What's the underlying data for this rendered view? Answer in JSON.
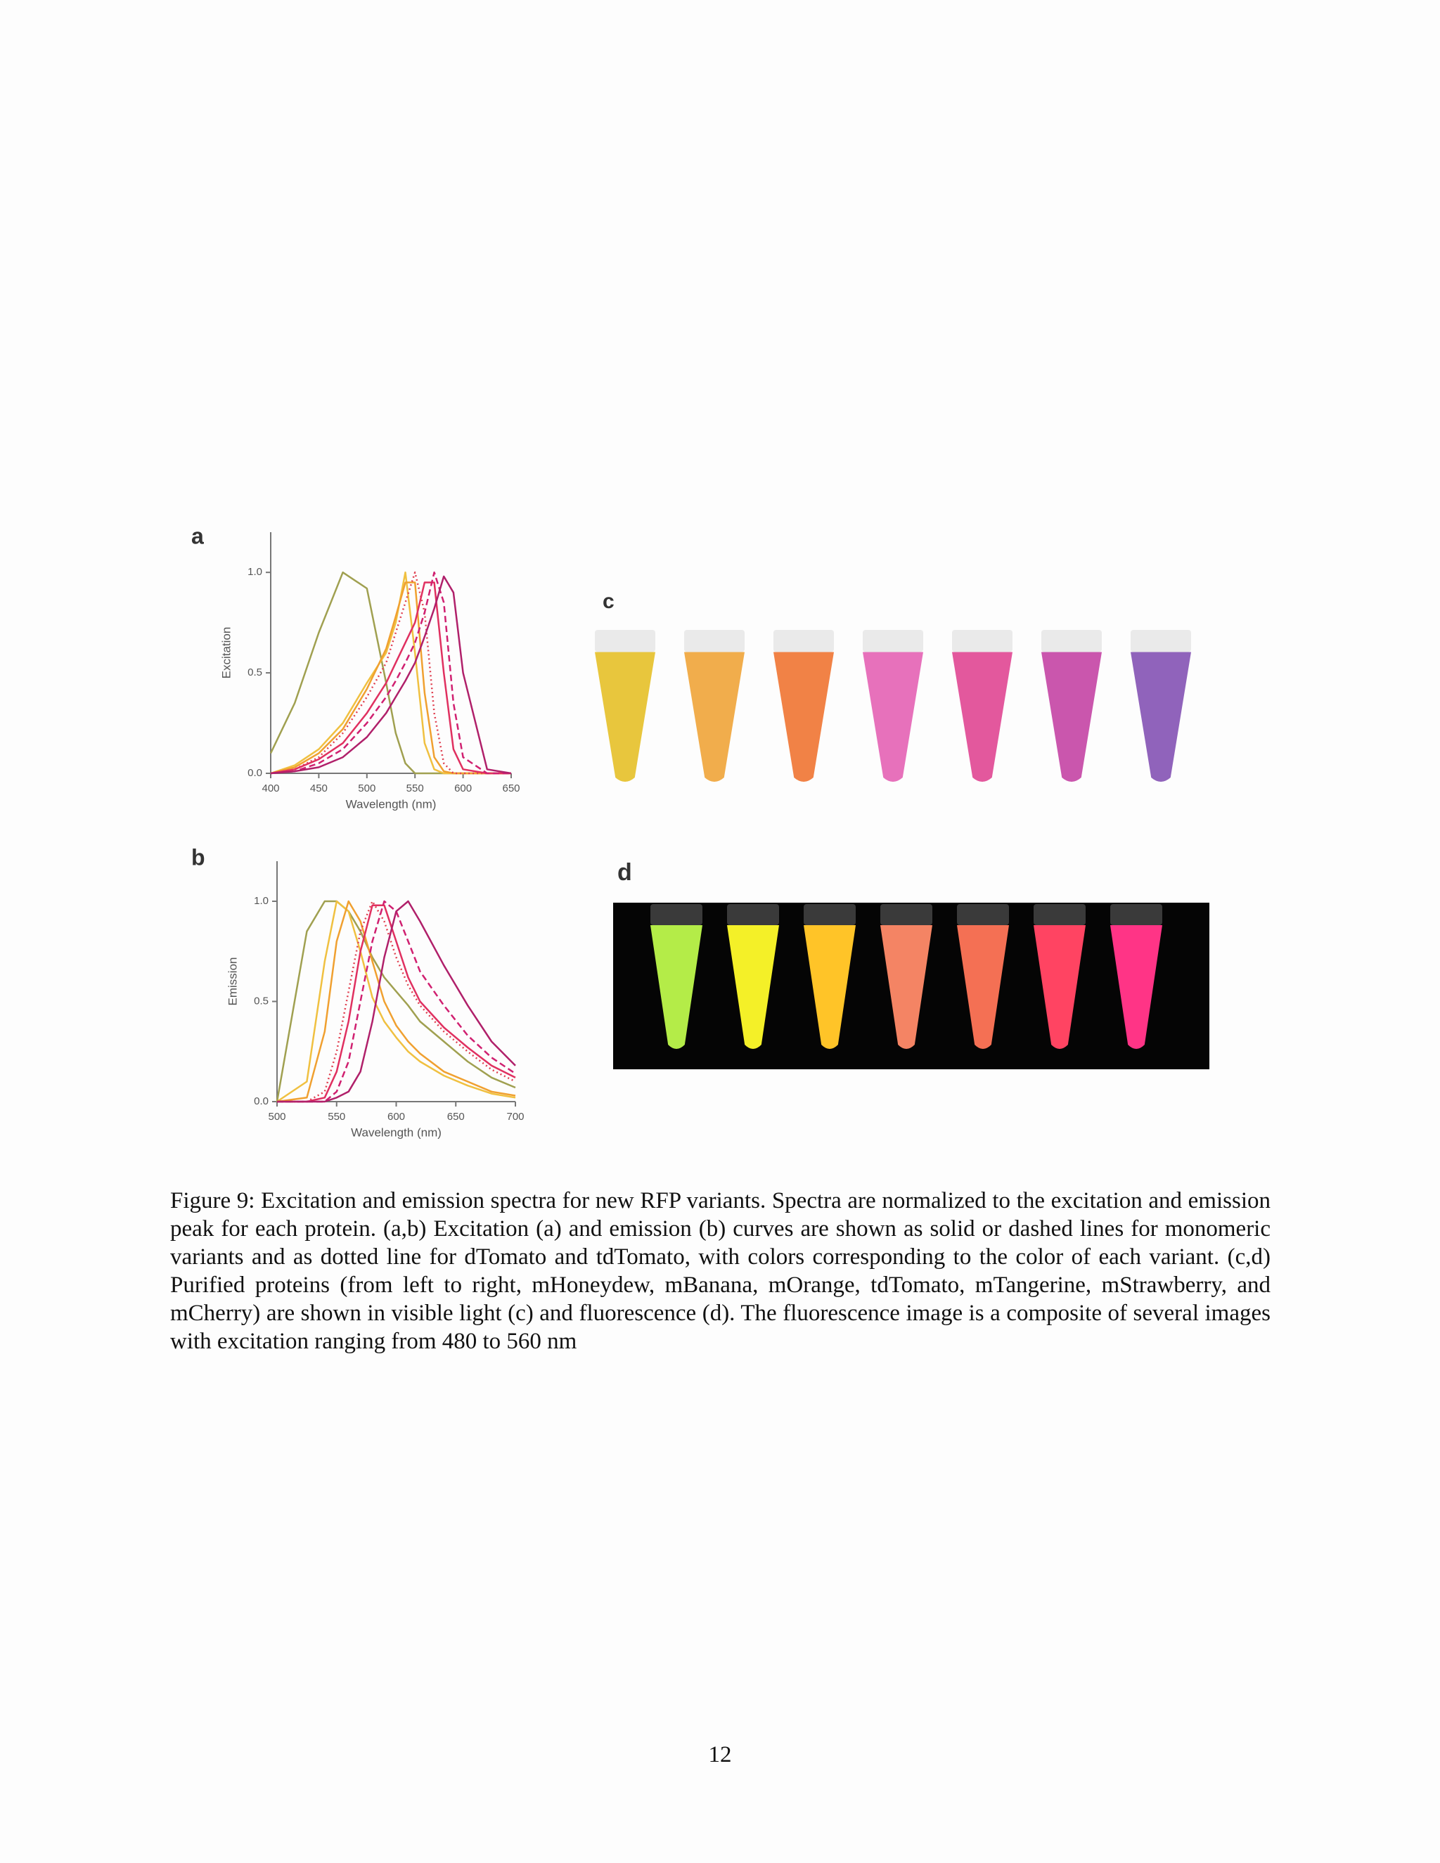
{
  "chart_data": [
    {
      "type": "line",
      "label": "a",
      "ylabel": "Excitation",
      "xlabel": "Wavelength (nm)",
      "x": [
        400,
        425,
        450,
        475,
        500,
        520,
        530,
        540,
        550,
        560,
        570,
        580,
        590,
        600,
        625,
        650
      ],
      "xlim": [
        400,
        650
      ],
      "xticks": [
        400,
        450,
        500,
        550,
        600,
        650
      ],
      "ylim": [
        0,
        1.2
      ],
      "yticks": [
        {
          "value": 0,
          "label": "0.0"
        },
        {
          "value": 0.5,
          "label": "0.5"
        },
        {
          "value": 1,
          "label": "1.0"
        }
      ],
      "series": [
        {
          "color": "#a0a050",
          "values": [
            0.1,
            0.35,
            0.7,
            1.0,
            0.92,
            0.45,
            0.2,
            0.05,
            0,
            0,
            0,
            0,
            0,
            0,
            0,
            0
          ]
        },
        {
          "color": "#f0c040",
          "values": [
            0,
            0.04,
            0.12,
            0.25,
            0.45,
            0.6,
            0.75,
            1.0,
            0.6,
            0.15,
            0.02,
            0,
            0,
            0,
            0,
            0
          ]
        },
        {
          "color": "#f0a030",
          "values": [
            0,
            0.03,
            0.1,
            0.22,
            0.42,
            0.62,
            0.78,
            0.95,
            0.95,
            0.4,
            0.08,
            0.01,
            0,
            0,
            0,
            0
          ]
        },
        {
          "color": "#e04050",
          "dash": "dotted",
          "values": [
            0,
            0.02,
            0.08,
            0.2,
            0.38,
            0.55,
            0.7,
            0.85,
            1.0,
            0.8,
            0.3,
            0.05,
            0,
            0,
            0,
            0
          ]
        },
        {
          "color": "#e03060",
          "values": [
            0,
            0.02,
            0.07,
            0.15,
            0.3,
            0.45,
            0.55,
            0.65,
            0.75,
            0.95,
            0.95,
            0.5,
            0.12,
            0.02,
            0,
            0
          ]
        },
        {
          "color": "#d02070",
          "dash": "dashed",
          "values": [
            0,
            0.01,
            0.05,
            0.12,
            0.25,
            0.38,
            0.46,
            0.55,
            0.65,
            0.8,
            1.0,
            0.85,
            0.35,
            0.08,
            0,
            0
          ]
        },
        {
          "color": "#b0206a",
          "values": [
            0,
            0.01,
            0.03,
            0.08,
            0.18,
            0.3,
            0.38,
            0.46,
            0.55,
            0.68,
            0.82,
            0.98,
            0.9,
            0.5,
            0.02,
            0
          ]
        }
      ]
    },
    {
      "type": "line",
      "label": "b",
      "ylabel": "Emission",
      "xlabel": "Wavelength (nm)",
      "x": [
        500,
        525,
        540,
        550,
        560,
        570,
        580,
        590,
        600,
        610,
        620,
        640,
        660,
        680,
        700
      ],
      "xlim": [
        500,
        700
      ],
      "xticks": [
        500,
        550,
        600,
        650,
        700
      ],
      "ylim": [
        0,
        1.2
      ],
      "yticks": [
        {
          "value": 0,
          "label": "0.0"
        },
        {
          "value": 0.5,
          "label": "0.5"
        },
        {
          "value": 1,
          "label": "1.0"
        }
      ],
      "series": [
        {
          "color": "#a0a050",
          "values": [
            0,
            0.85,
            1.0,
            1.0,
            0.95,
            0.85,
            0.72,
            0.62,
            0.55,
            0.48,
            0.4,
            0.3,
            0.2,
            0.12,
            0.07
          ]
        },
        {
          "color": "#f0c040",
          "values": [
            0,
            0.1,
            0.7,
            1.0,
            0.95,
            0.75,
            0.52,
            0.4,
            0.32,
            0.25,
            0.2,
            0.13,
            0.08,
            0.04,
            0.02
          ]
        },
        {
          "color": "#f0a030",
          "values": [
            0,
            0.02,
            0.35,
            0.8,
            1.0,
            0.9,
            0.7,
            0.5,
            0.38,
            0.3,
            0.24,
            0.15,
            0.1,
            0.05,
            0.03
          ]
        },
        {
          "color": "#e04050",
          "dash": "dotted",
          "values": [
            0,
            0,
            0.05,
            0.25,
            0.55,
            0.85,
            1.0,
            0.9,
            0.72,
            0.58,
            0.48,
            0.35,
            0.25,
            0.16,
            0.1
          ]
        },
        {
          "color": "#e03060",
          "values": [
            0,
            0,
            0.02,
            0.15,
            0.4,
            0.75,
            0.98,
            0.98,
            0.8,
            0.62,
            0.5,
            0.37,
            0.27,
            0.18,
            0.12
          ]
        },
        {
          "color": "#d02070",
          "dash": "dashed",
          "values": [
            0,
            0,
            0,
            0.05,
            0.2,
            0.5,
            0.8,
            1.0,
            0.95,
            0.8,
            0.65,
            0.48,
            0.33,
            0.22,
            0.14
          ]
        },
        {
          "color": "#b0206a",
          "values": [
            0,
            0,
            0,
            0.02,
            0.05,
            0.15,
            0.4,
            0.72,
            0.95,
            1.0,
            0.9,
            0.68,
            0.48,
            0.3,
            0.18
          ]
        }
      ]
    }
  ],
  "panel_labels": [
    "c",
    "d"
  ],
  "caption": "Figure 9: Excitation and emission spectra for new RFP variants. Spectra are normalized to the excitation and emission peak for each protein. (a,b) Excitation (a) and emission (b) curves are shown as solid or dashed lines for monomeric variants and as dotted line for dTomato and tdTomato, with colors corresponding to the color of each variant. (c,d) Purified proteins (from left to right, mHoneydew, mBanana, mOrange, tdTomato, mTangerine, mStrawberry, and mCherry) are shown in visible light (c) and fluorescence (d). The fluorescence image is a composite of several images with excitation ranging from 480 to 560 nm",
  "page_number": "12"
}
